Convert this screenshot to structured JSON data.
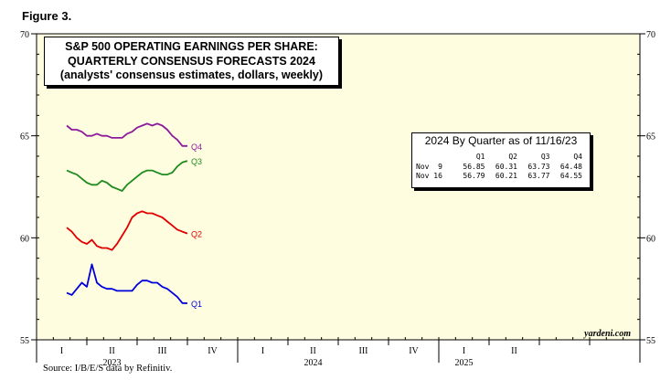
{
  "figure_label": "Figure 3.",
  "source": "Source: I/B/E/S data by Refinitiv.",
  "watermark": "yardeni.com",
  "chart_data": {
    "type": "line",
    "title": [
      "S&P 500 OPERATING EARNINGS PER SHARE:",
      "QUARTERLY CONSENSUS FORECASTS 2024"
    ],
    "subtitle": "(analysts' consensus estimates, dollars, weekly)",
    "ylim": [
      55,
      70
    ],
    "yticks": [
      55,
      60,
      65,
      70
    ],
    "xlim": [
      0,
      12
    ],
    "quarter_labels": [
      "I",
      "II",
      "III",
      "IV",
      "I",
      "II",
      "III",
      "IV",
      "I",
      "II"
    ],
    "year_labels": [
      {
        "label": "2023",
        "x": 1.5
      },
      {
        "label": "2024",
        "x": 5.5
      },
      {
        "label": "2025",
        "x": 8.5
      }
    ],
    "plot_bg": "#FFFDE0",
    "series": [
      {
        "name": "Q4",
        "color": "#8B1A9C",
        "x": [
          0.6,
          0.7,
          0.8,
          0.9,
          1.0,
          1.1,
          1.2,
          1.3,
          1.4,
          1.5,
          1.6,
          1.7,
          1.8,
          1.9,
          2.0,
          2.1,
          2.2,
          2.3,
          2.4,
          2.5,
          2.6,
          2.7,
          2.8,
          2.9,
          3.0
        ],
        "y": [
          65.5,
          65.3,
          65.3,
          65.2,
          65.0,
          65.0,
          65.1,
          65.0,
          65.0,
          64.9,
          64.9,
          64.9,
          65.1,
          65.2,
          65.4,
          65.5,
          65.6,
          65.5,
          65.6,
          65.5,
          65.3,
          65.0,
          64.8,
          64.5,
          64.5
        ]
      },
      {
        "name": "Q3",
        "color": "#1E8B1E",
        "x": [
          0.6,
          0.7,
          0.8,
          0.9,
          1.0,
          1.1,
          1.2,
          1.3,
          1.4,
          1.5,
          1.6,
          1.7,
          1.8,
          1.9,
          2.0,
          2.1,
          2.2,
          2.3,
          2.4,
          2.5,
          2.6,
          2.7,
          2.8,
          2.9,
          3.0
        ],
        "y": [
          63.3,
          63.2,
          63.1,
          62.9,
          62.7,
          62.6,
          62.6,
          62.8,
          62.7,
          62.5,
          62.4,
          62.3,
          62.6,
          62.8,
          63.0,
          63.2,
          63.3,
          63.3,
          63.2,
          63.1,
          63.1,
          63.2,
          63.5,
          63.7,
          63.77
        ]
      },
      {
        "name": "Q2",
        "color": "#E00000",
        "x": [
          0.6,
          0.7,
          0.8,
          0.9,
          1.0,
          1.1,
          1.2,
          1.3,
          1.4,
          1.5,
          1.6,
          1.7,
          1.8,
          1.9,
          2.0,
          2.1,
          2.2,
          2.3,
          2.4,
          2.5,
          2.6,
          2.7,
          2.8,
          2.9,
          3.0
        ],
        "y": [
          60.5,
          60.3,
          60.0,
          59.8,
          59.7,
          59.9,
          59.6,
          59.5,
          59.5,
          59.4,
          59.7,
          60.1,
          60.5,
          61.0,
          61.2,
          61.3,
          61.2,
          61.2,
          61.1,
          61.0,
          60.8,
          60.6,
          60.4,
          60.3,
          60.21
        ]
      },
      {
        "name": "Q1",
        "color": "#0000DD",
        "x": [
          0.6,
          0.7,
          0.8,
          0.9,
          1.0,
          1.1,
          1.2,
          1.3,
          1.4,
          1.5,
          1.6,
          1.7,
          1.8,
          1.9,
          2.0,
          2.1,
          2.2,
          2.3,
          2.4,
          2.5,
          2.6,
          2.7,
          2.8,
          2.9,
          3.0
        ],
        "y": [
          57.3,
          57.2,
          57.5,
          57.8,
          57.6,
          58.7,
          57.8,
          57.6,
          57.5,
          57.5,
          57.4,
          57.4,
          57.4,
          57.4,
          57.7,
          57.9,
          57.9,
          57.8,
          57.8,
          57.6,
          57.5,
          57.3,
          57.1,
          56.8,
          56.79
        ]
      }
    ],
    "table": {
      "title": "2024 By Quarter as of 11/16/23",
      "columns": [
        "Q1",
        "Q2",
        "Q3",
        "Q4"
      ],
      "rows": [
        {
          "label": "Nov  9",
          "values": [
            "56.85",
            "60.31",
            "63.73",
            "64.48"
          ]
        },
        {
          "label": "Nov 16",
          "values": [
            "56.79",
            "60.21",
            "63.77",
            "64.55"
          ]
        }
      ]
    }
  }
}
